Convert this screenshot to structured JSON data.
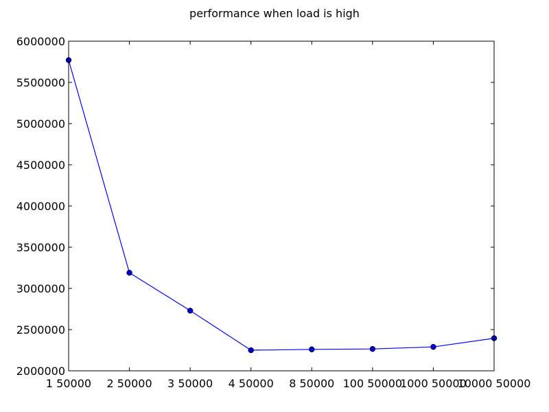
{
  "chart_data": {
    "type": "line",
    "title": "performance when load is high",
    "xlabel": "",
    "ylabel": "",
    "categories": [
      "1 50000",
      "2 50000",
      "3 50000",
      "4 50000",
      "8 50000",
      "100 50000",
      "1000 50000",
      "10000 50000"
    ],
    "y_ticks": [
      "2000000",
      "2500000",
      "3000000",
      "3500000",
      "4000000",
      "4500000",
      "5000000",
      "5500000",
      "6000000"
    ],
    "ylim": [
      2000000,
      6000000
    ],
    "series": [
      {
        "values": [
          5770000,
          3190000,
          2730000,
          2250000,
          2260000,
          2265000,
          2290000,
          2395000
        ]
      }
    ],
    "grid": false,
    "line_color": "#0000ff",
    "marker_color": "#0000bf"
  }
}
